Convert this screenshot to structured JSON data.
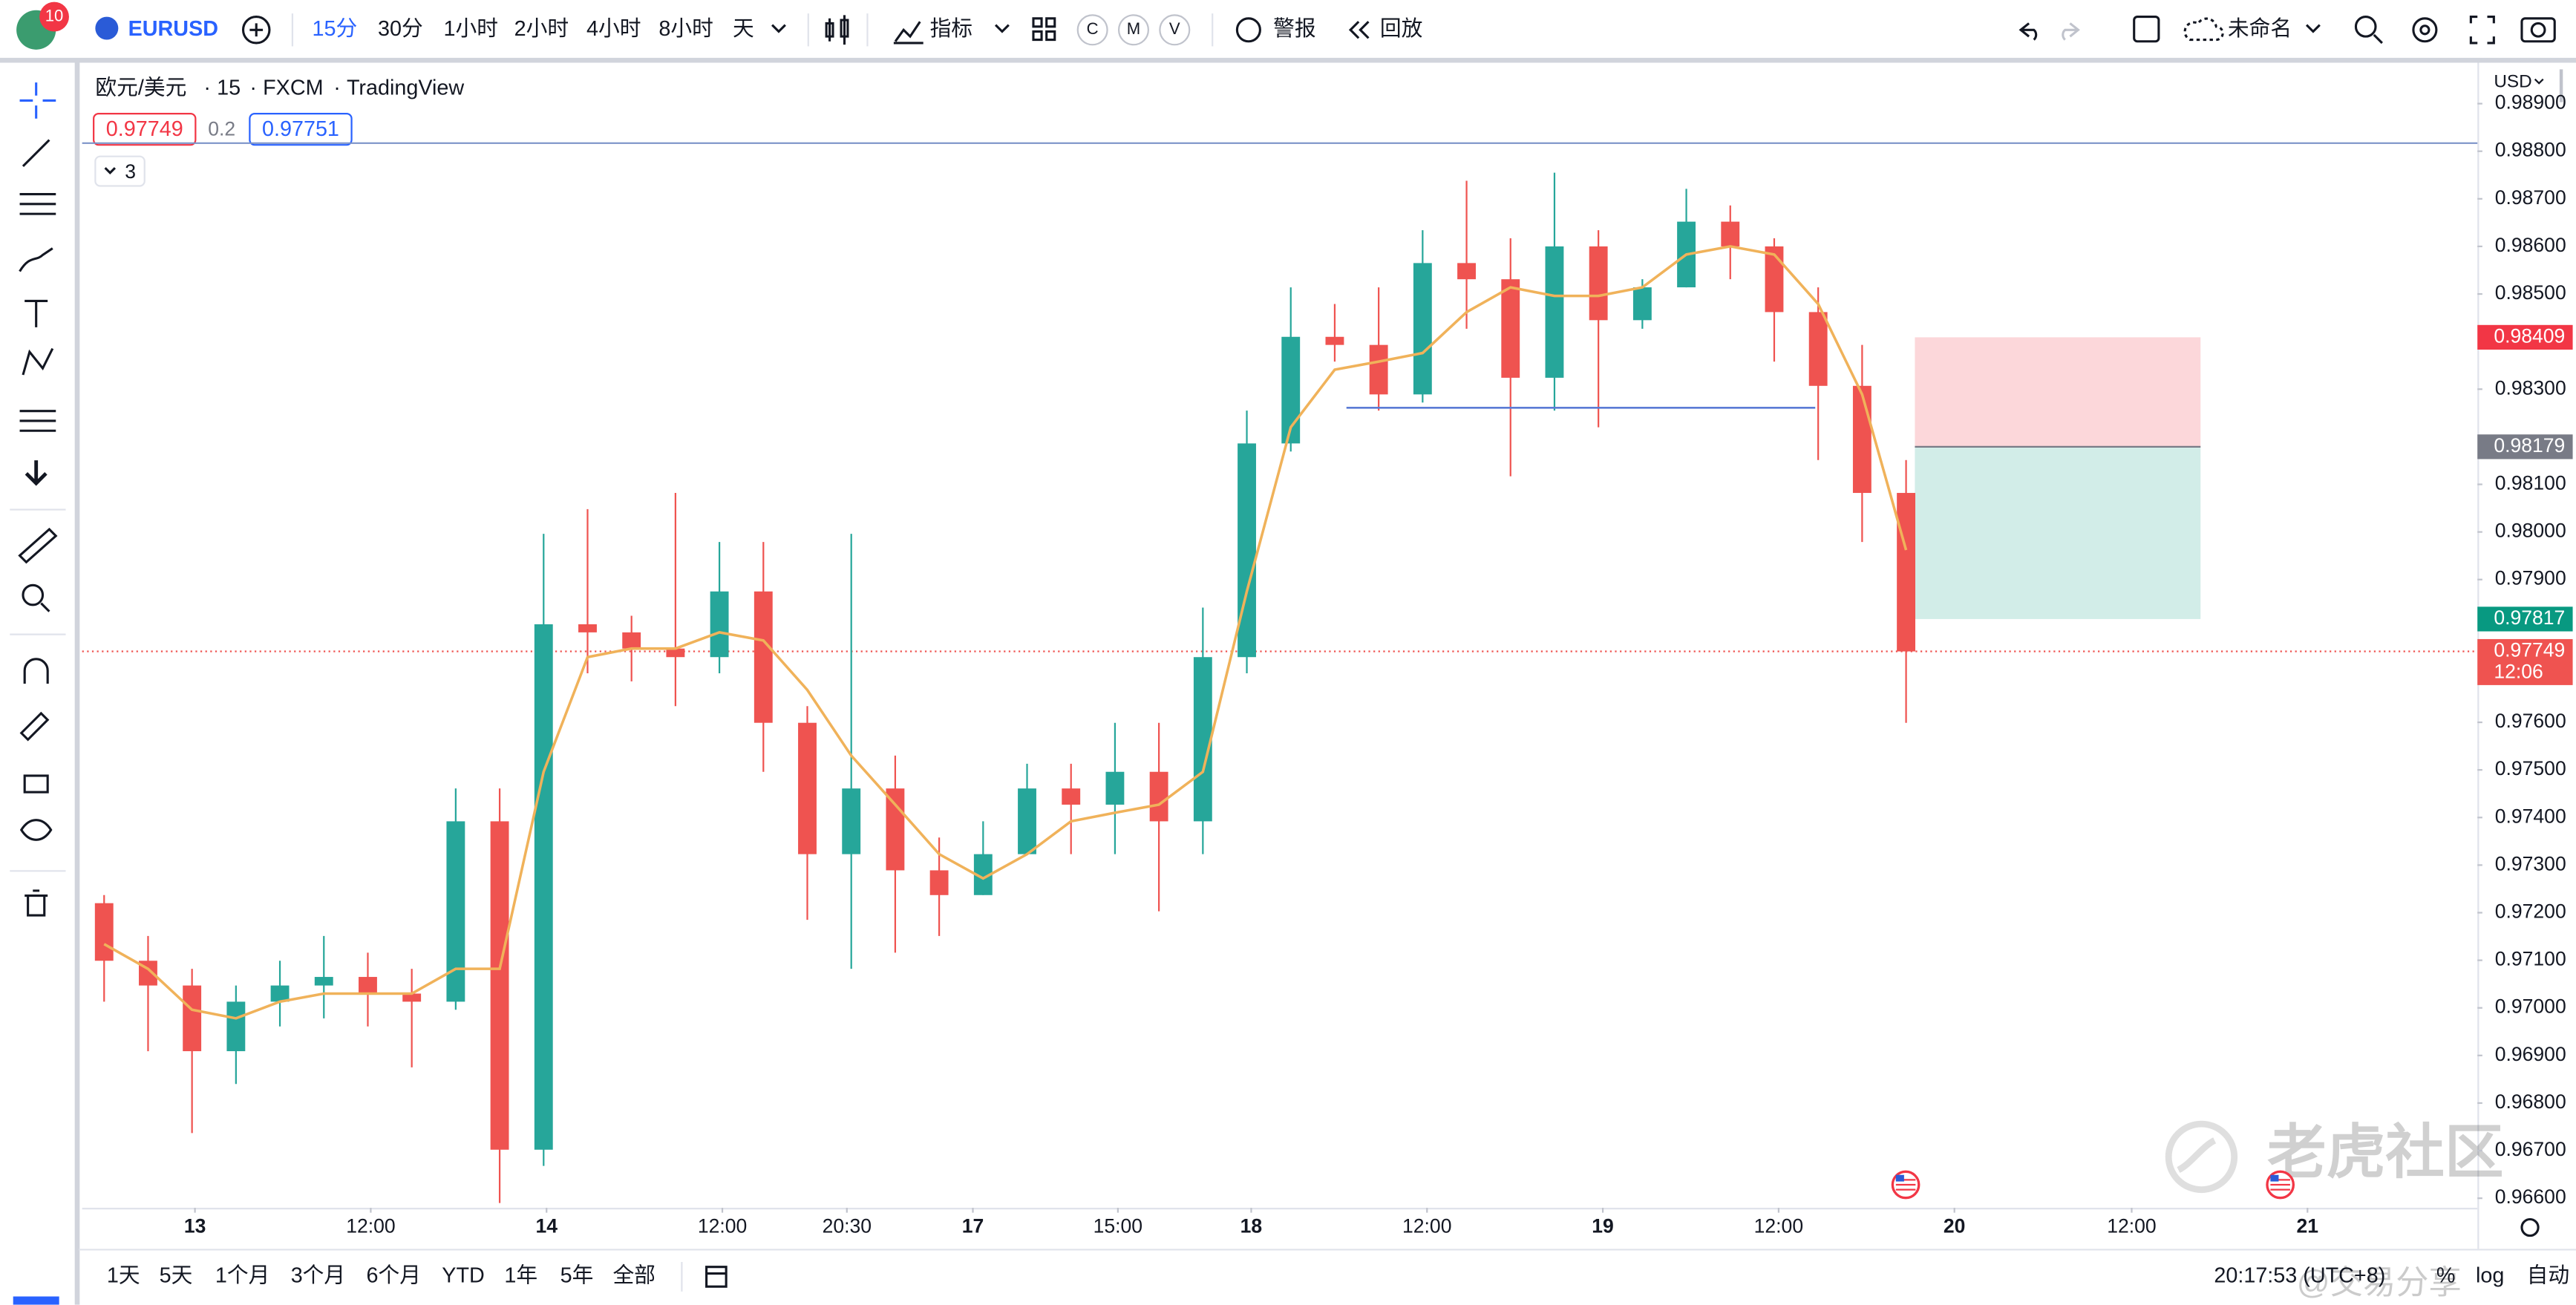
{
  "toolbar": {
    "badge": "10",
    "symbol": "EURUSD",
    "intervals": [
      "15分",
      "30分",
      "1小时",
      "2小时",
      "4小时",
      "8小时",
      "天"
    ],
    "indicators": "指标",
    "chips": [
      "C",
      "M",
      "V"
    ],
    "alert": "警报",
    "replay": "回放",
    "layout": "未命名"
  },
  "legend": {
    "symbol": "欧元/美元",
    "interval": 15,
    "exchange": "FXCM",
    "source": "TradingView",
    "bid": 0.97749,
    "spread": 0.2,
    "ask": 0.97751,
    "indicator_count": 3
  },
  "currency": "USD",
  "chart_data": {
    "type": "candlestick",
    "xlim": [
      0,
      163.5
    ],
    "ylim": [
      0.9658,
      0.98979
    ],
    "grid": false,
    "up_color": "#26a69a",
    "down_color": "#ef5350",
    "x": [
      1.5,
      4.5,
      7.5,
      10.5,
      13.5,
      16.5,
      19.5,
      22.5,
      25.5,
      28.5,
      31.5,
      34.5,
      37.5,
      40.5,
      43.5,
      46.5,
      49.5,
      52.5,
      55.5,
      58.5,
      61.5,
      64.5,
      67.5,
      70.5,
      73.5,
      76.5,
      79.5,
      82.5,
      85.5,
      88.5,
      91.5,
      94.5,
      97.5,
      100.5,
      103.5,
      106.5,
      109.5,
      112.5,
      115.5,
      118.5,
      121.5,
      124.5
    ],
    "open": [
      0.9722,
      0.97099,
      0.97047,
      0.96909,
      0.97013,
      0.97047,
      0.97065,
      0.9703,
      0.97013,
      0.97392,
      0.96702,
      0.97806,
      0.97789,
      0.97755,
      0.97737,
      0.97875,
      0.97599,
      0.97323,
      0.97461,
      0.97289,
      0.97237,
      0.97323,
      0.97461,
      0.97427,
      0.97496,
      0.97392,
      0.97737,
      0.98186,
      0.9841,
      0.98393,
      0.98289,
      0.98565,
      0.98531,
      0.98324,
      0.986,
      0.98445,
      0.98514,
      0.98652,
      0.986,
      0.98462,
      0.98307,
      0.98082
    ],
    "high": [
      0.97237,
      0.97151,
      0.97082,
      0.97047,
      0.97099,
      0.97151,
      0.97116,
      0.97082,
      0.97461,
      0.97461,
      0.97996,
      0.98048,
      0.97824,
      0.98082,
      0.97979,
      0.97979,
      0.97634,
      0.97996,
      0.9753,
      0.97358,
      0.97392,
      0.97513,
      0.97513,
      0.97599,
      0.97599,
      0.97841,
      0.98255,
      0.98514,
      0.98479,
      0.98514,
      0.98634,
      0.98738,
      0.98617,
      0.98755,
      0.98634,
      0.98531,
      0.98721,
      0.98686,
      0.98617,
      0.98514,
      0.98393,
      0.98151
    ],
    "low": [
      0.97013,
      0.96909,
      0.96737,
      0.9684,
      0.96961,
      0.96978,
      0.96961,
      0.96875,
      0.96996,
      0.9659,
      0.96668,
      0.97703,
      0.97686,
      0.97634,
      0.97703,
      0.97496,
      0.97185,
      0.97082,
      0.97116,
      0.97151,
      0.97237,
      0.97323,
      0.97323,
      0.97323,
      0.97203,
      0.97323,
      0.97703,
      0.98169,
      0.98358,
      0.98255,
      0.98272,
      0.98427,
      0.98117,
      0.98255,
      0.9822,
      0.98427,
      0.98514,
      0.98531,
      0.98358,
      0.98151,
      0.97979,
      0.97599
    ],
    "close": [
      0.97099,
      0.97047,
      0.96909,
      0.97013,
      0.97047,
      0.97065,
      0.9703,
      0.97013,
      0.97392,
      0.96702,
      0.97806,
      0.97789,
      0.97755,
      0.97737,
      0.97875,
      0.97599,
      0.97323,
      0.97461,
      0.97289,
      0.97237,
      0.97323,
      0.97461,
      0.97427,
      0.97496,
      0.97392,
      0.97737,
      0.98186,
      0.9841,
      0.98393,
      0.98289,
      0.98565,
      0.98531,
      0.98324,
      0.986,
      0.98445,
      0.98514,
      0.98652,
      0.986,
      0.98462,
      0.98307,
      0.98082,
      0.97749
    ],
    "ma": {
      "color": "#f0b25a",
      "values": [
        0.97134,
        0.97082,
        0.96996,
        0.96978,
        0.97013,
        0.9703,
        0.9703,
        0.9703,
        0.97082,
        0.97082,
        0.97496,
        0.97737,
        0.97755,
        0.97755,
        0.97789,
        0.97772,
        0.97668,
        0.9753,
        0.97427,
        0.97323,
        0.97272,
        0.97323,
        0.97392,
        0.9741,
        0.97427,
        0.97496,
        0.97875,
        0.9822,
        0.98341,
        0.98358,
        0.98376,
        0.98462,
        0.98514,
        0.98496,
        0.98496,
        0.98514,
        0.98583,
        0.986,
        0.98583,
        0.98479,
        0.98289,
        0.97962
      ]
    },
    "yticks": [
      {
        "value": 0.989,
        "label": "0.98900"
      },
      {
        "value": 0.988,
        "label": "0.98800"
      },
      {
        "value": 0.987,
        "label": "0.98700"
      },
      {
        "value": 0.986,
        "label": "0.98600"
      },
      {
        "value": 0.985,
        "label": "0.98500"
      },
      {
        "value": 0.983,
        "label": "0.98300"
      },
      {
        "value": 0.981,
        "label": "0.98100"
      },
      {
        "value": 0.98,
        "label": "0.98000"
      },
      {
        "value": 0.979,
        "label": "0.97900"
      },
      {
        "value": 0.976,
        "label": "0.97600"
      },
      {
        "value": 0.975,
        "label": "0.97500"
      },
      {
        "value": 0.974,
        "label": "0.97400"
      },
      {
        "value": 0.973,
        "label": "0.97300"
      },
      {
        "value": 0.972,
        "label": "0.97200"
      },
      {
        "value": 0.971,
        "label": "0.97100"
      },
      {
        "value": 0.97,
        "label": "0.97000"
      },
      {
        "value": 0.969,
        "label": "0.96900"
      },
      {
        "value": 0.968,
        "label": "0.96800"
      },
      {
        "value": 0.967,
        "label": "0.96700"
      },
      {
        "value": 0.966,
        "label": "0.96600"
      }
    ],
    "xticks": [
      {
        "value": 7.7,
        "label": "13"
      },
      {
        "value": 19.7,
        "label": "12:00"
      },
      {
        "value": 31.7,
        "label": "14"
      },
      {
        "value": 43.7,
        "label": "12:00"
      },
      {
        "value": 52.2,
        "label": "20:30"
      },
      {
        "value": 60.8,
        "label": "17"
      },
      {
        "value": 70.7,
        "label": "15:00"
      },
      {
        "value": 79.8,
        "label": "18"
      },
      {
        "value": 91.8,
        "label": "12:00"
      },
      {
        "value": 103.8,
        "label": "19"
      },
      {
        "value": 115.8,
        "label": "12:00"
      },
      {
        "value": 127.8,
        "label": "20"
      },
      {
        "value": 139.9,
        "label": "12:00"
      },
      {
        "value": 151.9,
        "label": "21"
      }
    ],
    "alert_line": {
      "value": 0.98817,
      "color": "#7b93c8"
    },
    "trend_line": {
      "x": [
        86.3,
        118.3
      ],
      "value": 0.98261,
      "color": "#5b7bd5"
    },
    "position": {
      "x": [
        125.1,
        144.6
      ],
      "stop": 0.98409,
      "entry": 0.98179,
      "target": 0.97817
    },
    "last": {
      "price": 0.97749,
      "countdown": "12:06"
    }
  },
  "bottom": {
    "ranges": [
      "1天",
      "5天",
      "1个月",
      "3个月",
      "6个月",
      "YTD",
      "1年",
      "5年",
      "全部"
    ],
    "clock": "20:17:53 (UTC+8)",
    "percent": "%",
    "log": "log",
    "auto": "自动"
  },
  "watermark": {
    "brand": "老虎社区",
    "author": "@交易分享"
  }
}
